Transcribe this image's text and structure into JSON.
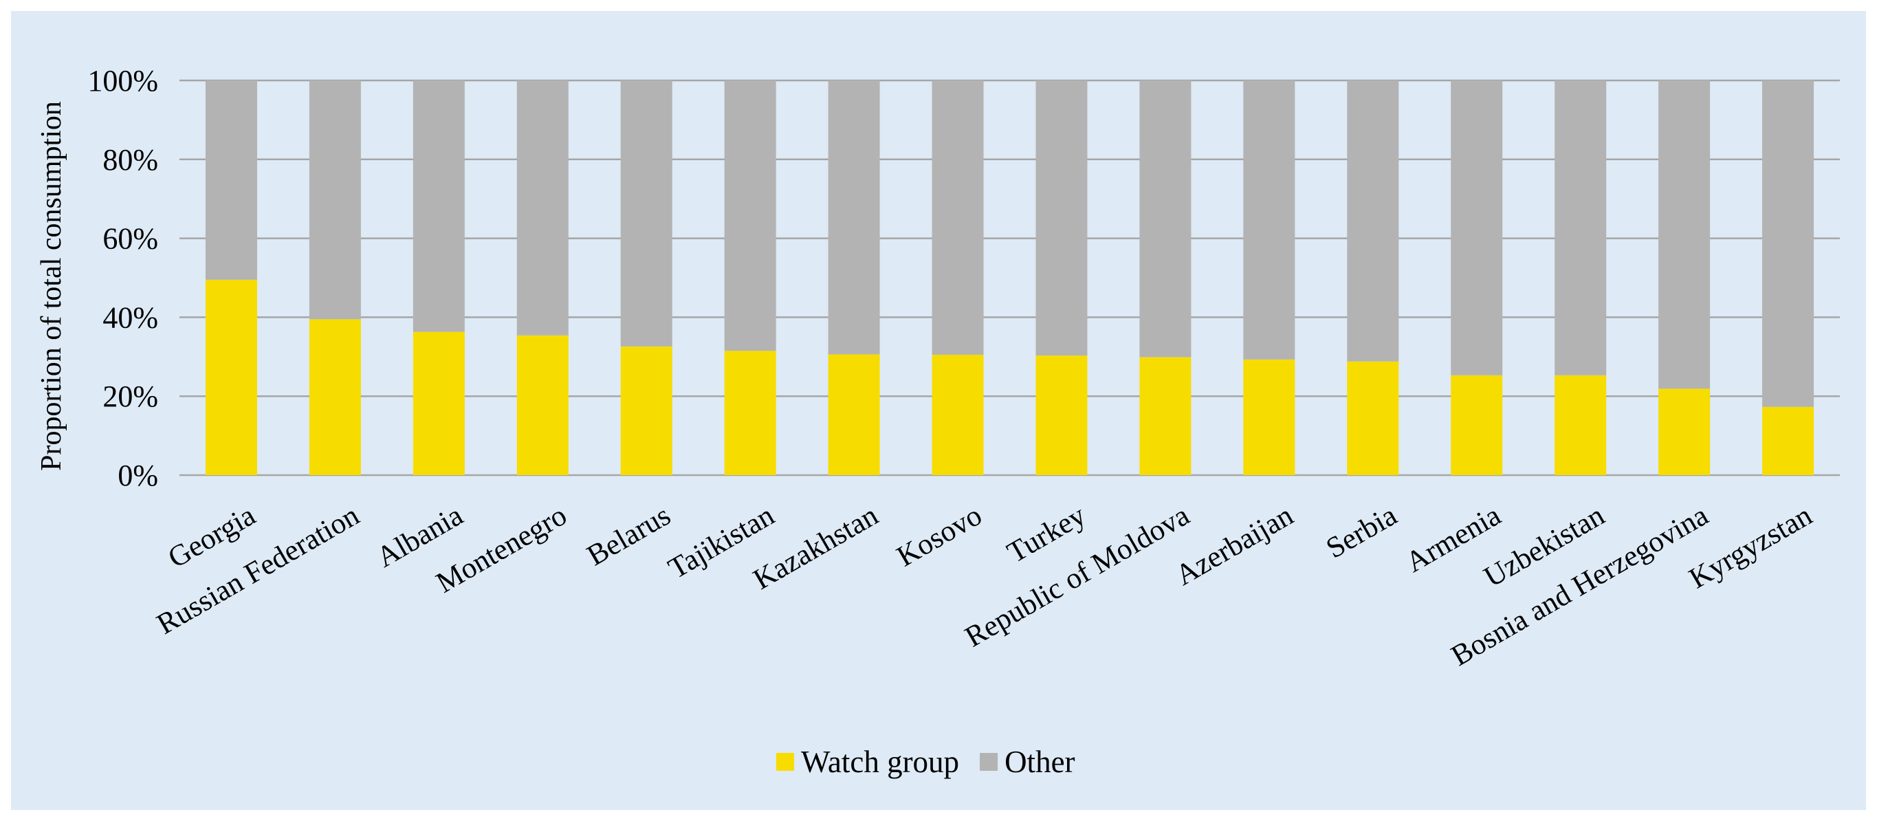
{
  "chart_data": {
    "type": "bar",
    "stacked": true,
    "percent_stacked": true,
    "title": "",
    "xlabel": "",
    "ylabel": "Proportion of  total consumption",
    "ylim": [
      0,
      100
    ],
    "y_ticks": [
      "0%",
      "20%",
      "40%",
      "60%",
      "80%",
      "100%"
    ],
    "grid": true,
    "legend_position": "bottom",
    "categories": [
      "Georgia",
      "Russian Federation",
      "Albania",
      "Montenegro",
      "Belarus",
      "Tajikistan",
      "Kazakhstan",
      "Kosovo",
      "Turkey",
      "Republic of Moldova",
      "Azerbaijan",
      "Serbia",
      "Armenia",
      "Uzbekistan",
      "Bosnia and Herzegovina",
      "Kyrgyzstan"
    ],
    "series": [
      {
        "name": "Watch group",
        "color": "#f7dc00",
        "values": [
          49.5,
          39.5,
          36.3,
          35.4,
          32.6,
          31.5,
          30.6,
          30.5,
          30.3,
          29.9,
          29.3,
          28.8,
          25.3,
          25.3,
          21.9,
          17.3
        ]
      },
      {
        "name": "Other",
        "color": "#b3b3b3",
        "values": [
          50.5,
          60.5,
          63.7,
          64.6,
          67.4,
          68.5,
          69.4,
          69.5,
          69.7,
          70.1,
          70.7,
          71.2,
          74.7,
          74.7,
          78.1,
          82.7
        ]
      }
    ]
  },
  "colors": {
    "background": "#deeaf5",
    "gridline": "#a6a6a6",
    "watch_group": "#f7dc00",
    "other": "#b3b3b3"
  }
}
